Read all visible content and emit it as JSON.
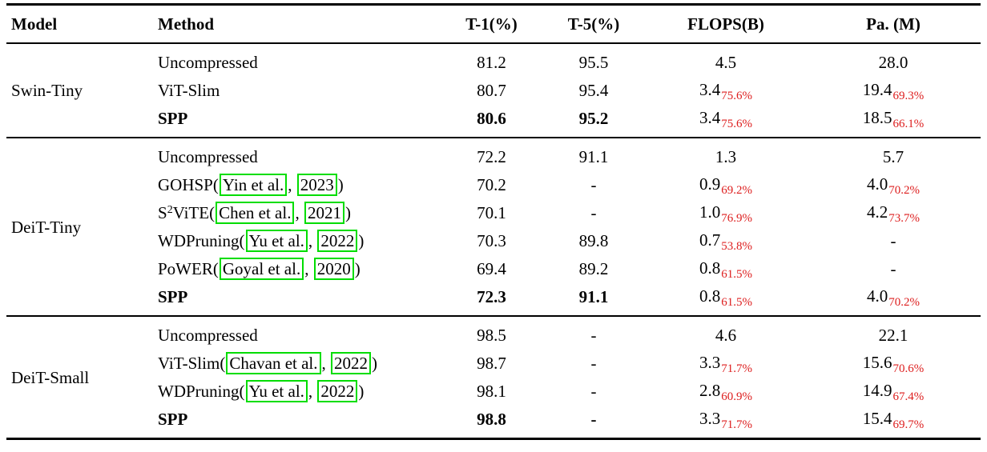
{
  "table": {
    "accent_colors": {
      "subscript_red": "#dd1d1d",
      "citation_box_green": "#00dd00"
    },
    "headers": [
      "Model",
      "Method",
      "T-1(%)",
      "T-5(%)",
      "FLOPS(B)",
      "Pa. (M)"
    ],
    "groups": [
      {
        "model": "Swin-Tiny",
        "rows": [
          {
            "method": [
              {
                "t": "Uncompressed"
              }
            ],
            "t1": {
              "main": "81.2"
            },
            "t5": {
              "main": "95.5"
            },
            "flops": {
              "main": "4.5"
            },
            "pa": {
              "main": "28.0"
            }
          },
          {
            "method": [
              {
                "t": "ViT-Slim"
              }
            ],
            "t1": {
              "main": "80.7"
            },
            "t5": {
              "main": "95.4"
            },
            "flops": {
              "main": "3.4",
              "sub": "75.6%"
            },
            "pa": {
              "main": "19.4",
              "sub": "69.3%"
            }
          },
          {
            "bold": true,
            "method": [
              {
                "t": "SPP"
              }
            ],
            "t1": {
              "main": "80.6"
            },
            "t5": {
              "main": "95.2"
            },
            "flops": {
              "main": "3.4",
              "sub": "75.6%"
            },
            "pa": {
              "main": "18.5",
              "sub": "66.1%"
            }
          }
        ]
      },
      {
        "model": "DeiT-Tiny",
        "rows": [
          {
            "method": [
              {
                "t": "Uncompressed"
              }
            ],
            "t1": {
              "main": "72.2"
            },
            "t5": {
              "main": "91.1"
            },
            "flops": {
              "main": "1.3"
            },
            "pa": {
              "main": "5.7"
            }
          },
          {
            "method": [
              {
                "t": "GOHSP("
              },
              {
                "t": "Yin et al.",
                "box": true
              },
              {
                "t": ", "
              },
              {
                "t": "2023",
                "box": true
              },
              {
                "t": ")"
              }
            ],
            "t1": {
              "main": "70.2"
            },
            "t5": {
              "main": "-"
            },
            "flops": {
              "main": "0.9",
              "sub": "69.2%"
            },
            "pa": {
              "main": "4.0",
              "sub": "70.2%"
            }
          },
          {
            "method": [
              {
                "t": "S"
              },
              {
                "t": "2",
                "sup": true
              },
              {
                "t": "ViTE("
              },
              {
                "t": "Chen et al.",
                "box": true
              },
              {
                "t": ", "
              },
              {
                "t": "2021",
                "box": true
              },
              {
                "t": ")"
              }
            ],
            "t1": {
              "main": "70.1"
            },
            "t5": {
              "main": "-"
            },
            "flops": {
              "main": "1.0",
              "sub": "76.9%"
            },
            "pa": {
              "main": "4.2",
              "sub": "73.7%"
            }
          },
          {
            "method": [
              {
                "t": "WDPruning("
              },
              {
                "t": "Yu et al.",
                "box": true
              },
              {
                "t": ", "
              },
              {
                "t": "2022",
                "box": true
              },
              {
                "t": ")"
              }
            ],
            "t1": {
              "main": "70.3"
            },
            "t5": {
              "main": "89.8"
            },
            "flops": {
              "main": "0.7",
              "sub": "53.8%"
            },
            "pa": {
              "main": "-"
            }
          },
          {
            "method": [
              {
                "t": "PoWER("
              },
              {
                "t": "Goyal et al.",
                "box": true
              },
              {
                "t": ", "
              },
              {
                "t": "2020",
                "box": true
              },
              {
                "t": ")"
              }
            ],
            "t1": {
              "main": "69.4"
            },
            "t5": {
              "main": "89.2"
            },
            "flops": {
              "main": "0.8",
              "sub": "61.5%"
            },
            "pa": {
              "main": "-"
            }
          },
          {
            "bold": true,
            "method": [
              {
                "t": "SPP"
              }
            ],
            "t1": {
              "main": "72.3"
            },
            "t5": {
              "main": "91.1"
            },
            "flops": {
              "main": "0.8",
              "sub": "61.5%"
            },
            "pa": {
              "main": "4.0",
              "sub": "70.2%"
            }
          }
        ]
      },
      {
        "model": "DeiT-Small",
        "rows": [
          {
            "method": [
              {
                "t": "Uncompressed"
              }
            ],
            "t1": {
              "main": "98.5"
            },
            "t5": {
              "main": "-"
            },
            "flops": {
              "main": "4.6"
            },
            "pa": {
              "main": "22.1"
            }
          },
          {
            "method": [
              {
                "t": "ViT-Slim("
              },
              {
                "t": "Chavan et al.",
                "box": true
              },
              {
                "t": ", "
              },
              {
                "t": "2022",
                "box": true
              },
              {
                "t": ")"
              }
            ],
            "t1": {
              "main": "98.7"
            },
            "t5": {
              "main": "-"
            },
            "flops": {
              "main": "3.3",
              "sub": "71.7%"
            },
            "pa": {
              "main": "15.6",
              "sub": "70.6%"
            }
          },
          {
            "method": [
              {
                "t": "WDPruning("
              },
              {
                "t": "Yu et al.",
                "box": true
              },
              {
                "t": ", "
              },
              {
                "t": "2022",
                "box": true
              },
              {
                "t": ")"
              }
            ],
            "t1": {
              "main": "98.1"
            },
            "t5": {
              "main": "-"
            },
            "flops": {
              "main": "2.8",
              "sub": "60.9%"
            },
            "pa": {
              "main": "14.9",
              "sub": "67.4%"
            }
          },
          {
            "bold": true,
            "method": [
              {
                "t": "SPP"
              }
            ],
            "t1": {
              "main": "98.8"
            },
            "t5": {
              "main": "-"
            },
            "flops": {
              "main": "3.3",
              "sub": "71.7%"
            },
            "pa": {
              "main": "15.4",
              "sub": "69.7%"
            }
          }
        ]
      }
    ]
  }
}
